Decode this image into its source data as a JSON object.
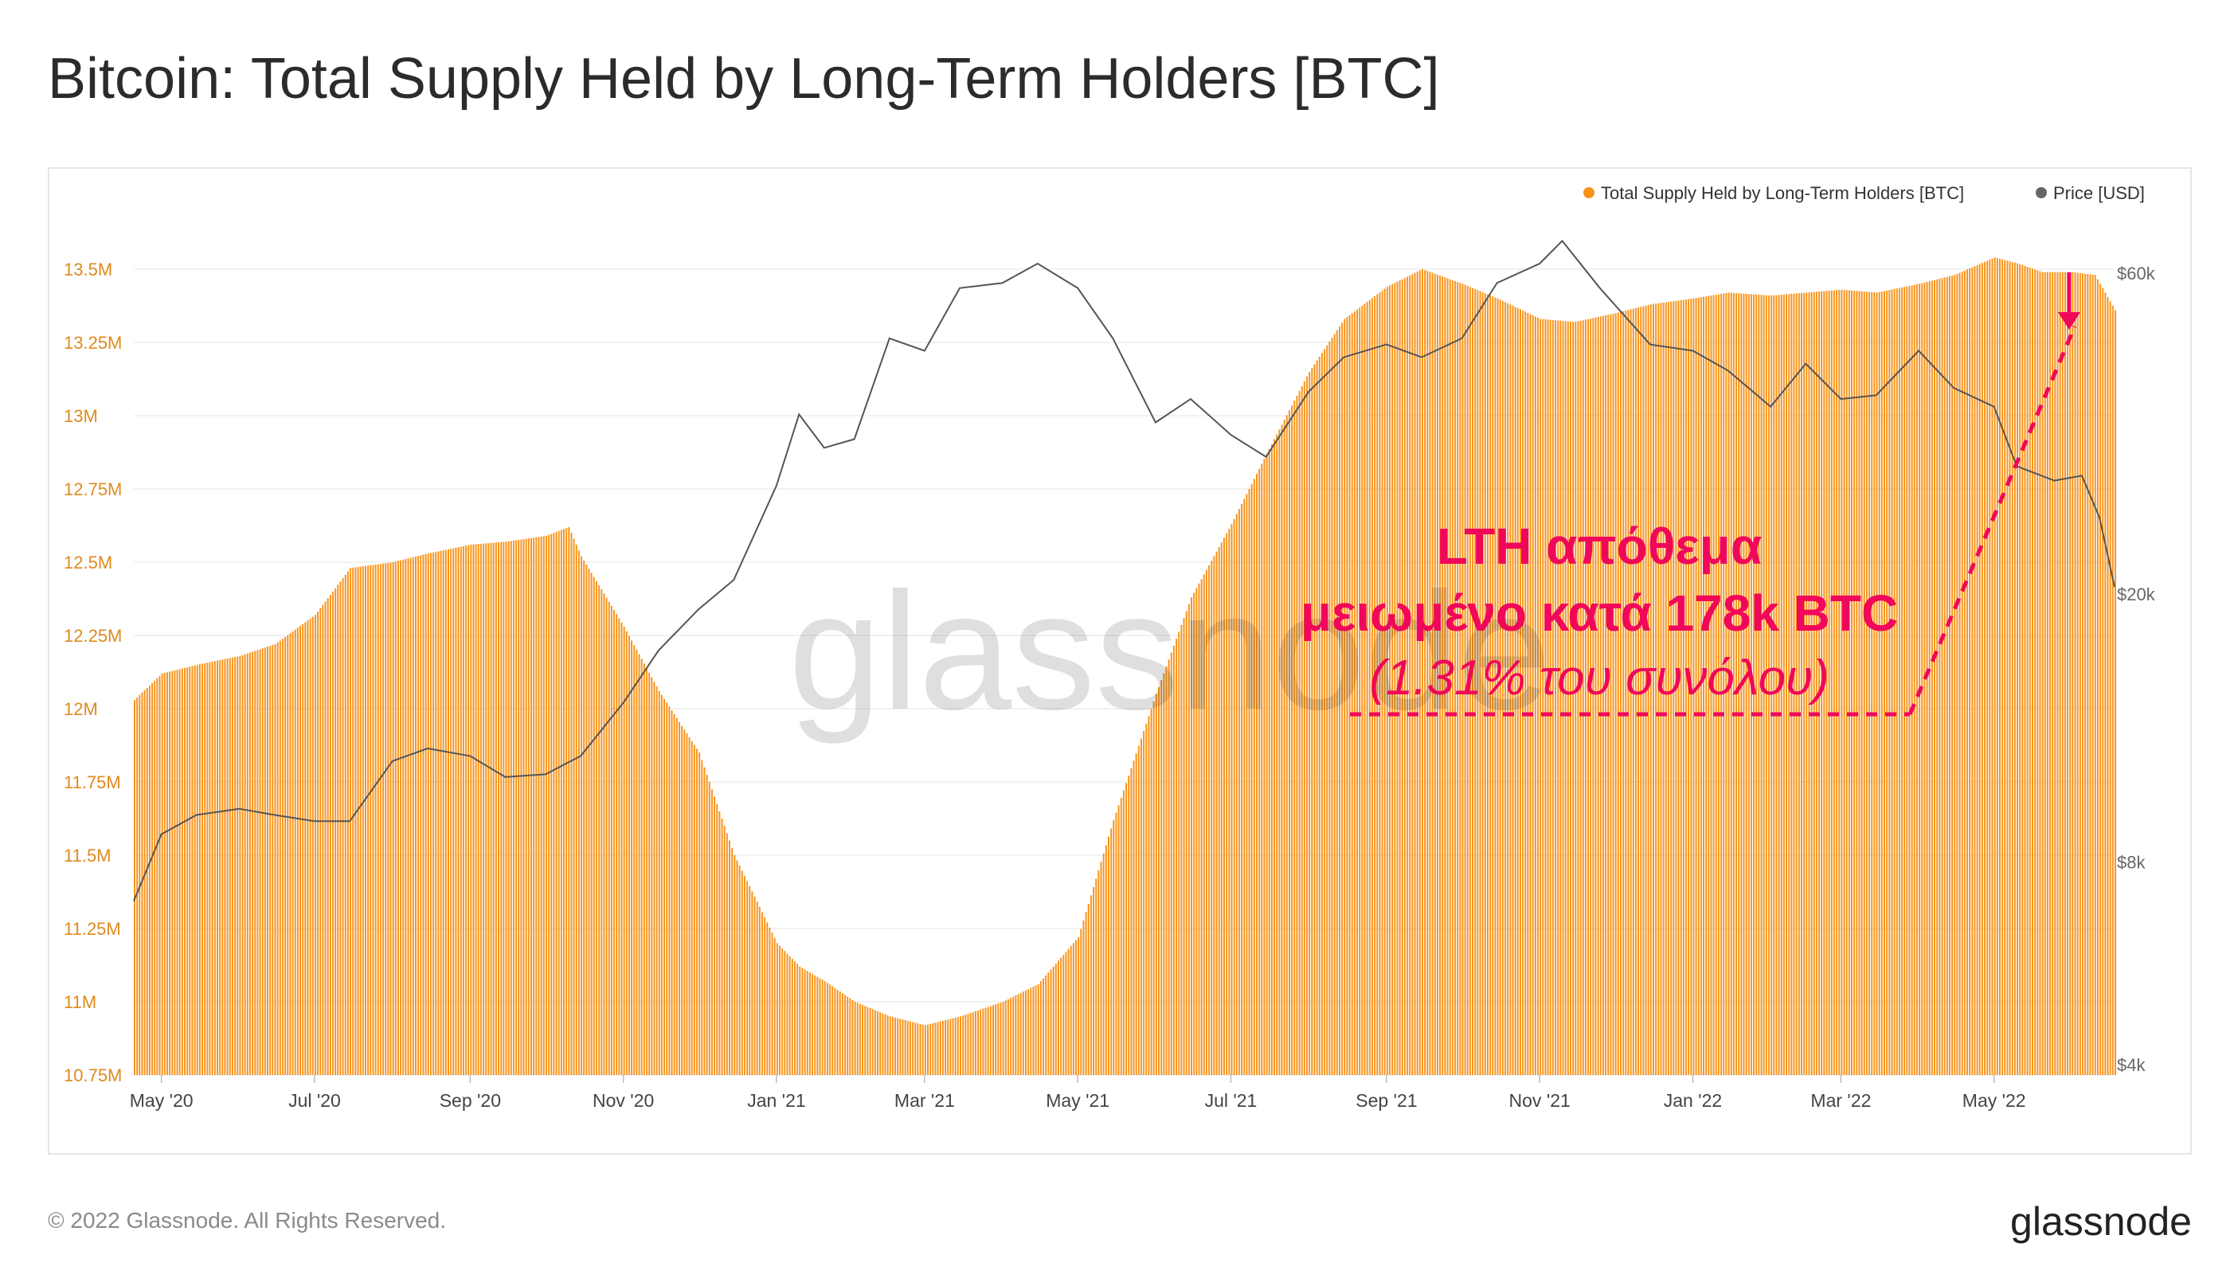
{
  "title": "Bitcoin: Total Supply Held by Long-Term Holders [BTC]",
  "footer": "© 2022 Glassnode. All Rights Reserved.",
  "brand": "glassnode",
  "watermark": "glassnode",
  "annotation": {
    "line1": "LTH απόθεμα",
    "line2": "μειωμένο κατά 178k BTC",
    "line3": "(1.31% του συνόλου)",
    "color": "#f0075a"
  },
  "legend": [
    {
      "label": "Total Supply Held by Long-Term Holders [BTC]",
      "color": "#f7931a"
    },
    {
      "label": "Price [USD]",
      "color": "#666666"
    }
  ],
  "chart_data": {
    "type": "bar",
    "title": "Bitcoin: Total Supply Held by Long-Term Holders [BTC]",
    "x_ticks": [
      "May '20",
      "Jul '20",
      "Sep '20",
      "Nov '20",
      "Jan '21",
      "Mar '21",
      "May '21",
      "Jul '21",
      "Sep '21",
      "Nov '21",
      "Jan '22",
      "Mar '22",
      "May '22"
    ],
    "y_left": {
      "ticks": [
        "13.5M",
        "13.25M",
        "13M",
        "12.75M",
        "12.5M",
        "12.25M",
        "12M",
        "11.75M",
        "11.5M",
        "11.25M",
        "11M",
        "10.75M"
      ],
      "ylim": [
        10.75,
        13.6
      ],
      "unit": "M BTC"
    },
    "y_right": {
      "ticks": [
        "$60k",
        "$20k",
        "$8k",
        "$4k"
      ],
      "scale": "log"
    },
    "grid": true,
    "legend_position": "top-right",
    "series": [
      {
        "name": "Total Supply Held by Long-Term Holders [BTC]",
        "type": "bar",
        "color": "#f7931a",
        "x": [
          "2020-04-20",
          "2020-05-01",
          "2020-05-15",
          "2020-06-01",
          "2020-06-15",
          "2020-07-01",
          "2020-07-15",
          "2020-08-01",
          "2020-08-15",
          "2020-09-01",
          "2020-09-15",
          "2020-10-01",
          "2020-10-10",
          "2020-10-15",
          "2020-11-01",
          "2020-11-15",
          "2020-12-01",
          "2020-12-15",
          "2021-01-01",
          "2021-01-10",
          "2021-01-20",
          "2021-02-01",
          "2021-02-15",
          "2021-03-01",
          "2021-03-15",
          "2021-04-01",
          "2021-04-15",
          "2021-05-01",
          "2021-05-15",
          "2021-06-01",
          "2021-06-15",
          "2021-07-01",
          "2021-07-15",
          "2021-08-01",
          "2021-08-15",
          "2021-09-01",
          "2021-09-15",
          "2021-10-01",
          "2021-10-15",
          "2021-11-01",
          "2021-11-15",
          "2021-12-01",
          "2021-12-15",
          "2022-01-01",
          "2022-01-15",
          "2022-02-01",
          "2022-02-15",
          "2022-03-01",
          "2022-03-15",
          "2022-04-01",
          "2022-04-15",
          "2022-05-01",
          "2022-05-10",
          "2022-05-20",
          "2022-06-01",
          "2022-06-10",
          "2022-06-18"
        ],
        "values": [
          12.03,
          12.12,
          12.15,
          12.18,
          12.22,
          12.32,
          12.48,
          12.5,
          12.53,
          12.56,
          12.57,
          12.59,
          12.62,
          12.52,
          12.28,
          12.06,
          11.85,
          11.5,
          11.2,
          11.12,
          11.07,
          11.0,
          10.95,
          10.92,
          10.95,
          11.0,
          11.06,
          11.22,
          11.62,
          12.05,
          12.38,
          12.63,
          12.87,
          13.15,
          13.33,
          13.44,
          13.5,
          13.45,
          13.4,
          13.33,
          13.32,
          13.35,
          13.38,
          13.4,
          13.42,
          13.41,
          13.42,
          13.43,
          13.42,
          13.45,
          13.48,
          13.54,
          13.52,
          13.49,
          13.49,
          13.48,
          13.36
        ]
      },
      {
        "name": "Price [USD]",
        "type": "line",
        "color": "#555555",
        "x": [
          "2020-04-20",
          "2020-05-01",
          "2020-05-15",
          "2020-06-01",
          "2020-06-15",
          "2020-07-01",
          "2020-07-15",
          "2020-08-01",
          "2020-08-15",
          "2020-09-01",
          "2020-09-15",
          "2020-10-01",
          "2020-10-15",
          "2020-11-01",
          "2020-11-15",
          "2020-12-01",
          "2020-12-15",
          "2021-01-01",
          "2021-01-10",
          "2021-01-20",
          "2021-02-01",
          "2021-02-15",
          "2021-03-01",
          "2021-03-15",
          "2021-04-01",
          "2021-04-15",
          "2021-05-01",
          "2021-05-15",
          "2021-06-01",
          "2021-06-15",
          "2021-07-01",
          "2021-07-15",
          "2021-08-01",
          "2021-08-15",
          "2021-09-01",
          "2021-09-15",
          "2021-10-01",
          "2021-10-15",
          "2021-11-01",
          "2021-11-10",
          "2021-11-25",
          "2021-12-15",
          "2022-01-01",
          "2022-01-15",
          "2022-02-01",
          "2022-02-15",
          "2022-03-01",
          "2022-03-15",
          "2022-04-01",
          "2022-04-15",
          "2022-05-01",
          "2022-05-10",
          "2022-05-25",
          "2022-06-05",
          "2022-06-12",
          "2022-06-18"
        ],
        "values": [
          7000,
          8800,
          9400,
          9600,
          9400,
          9200,
          9200,
          11300,
          11800,
          11500,
          10700,
          10800,
          11500,
          13800,
          16500,
          19000,
          21000,
          29000,
          37000,
          33000,
          34000,
          48000,
          46000,
          57000,
          58000,
          62000,
          57000,
          48000,
          36000,
          39000,
          34500,
          32000,
          40000,
          45000,
          47000,
          45000,
          48000,
          58000,
          62000,
          67000,
          57000,
          47000,
          46000,
          43000,
          38000,
          44000,
          39000,
          39500,
          46000,
          40500,
          38000,
          31000,
          29500,
          30000,
          26000,
          20500
        ]
      }
    ]
  }
}
